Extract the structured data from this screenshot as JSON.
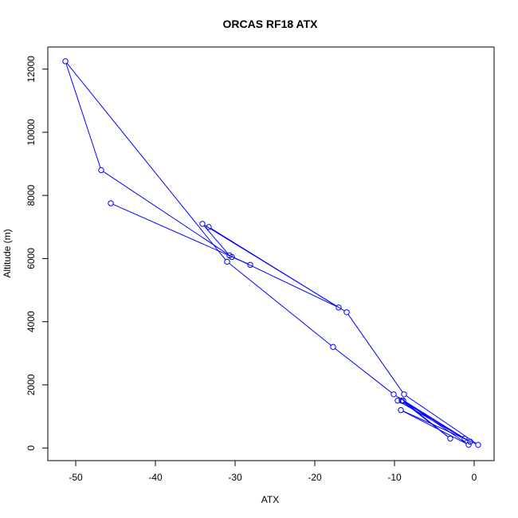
{
  "chart_data": {
    "type": "line",
    "title": "ORCAS RF18 ATX",
    "xlabel": "ATX",
    "ylabel": "Altitude (m)",
    "xlim": [
      -53.5,
      2.5
    ],
    "ylim": [
      -400,
      12700
    ],
    "x_ticks": [
      -50,
      -40,
      -30,
      -20,
      -10,
      0
    ],
    "y_ticks": [
      0,
      2000,
      4000,
      6000,
      8000,
      10000,
      12000
    ],
    "grid": false,
    "line_color": "#0000ff",
    "series": [
      {
        "x": [
          -45.6,
          -28.1,
          -30.4,
          -46.8,
          -51.3,
          -31.0,
          -17.7,
          -10.1,
          -1.2,
          -9.6,
          -0.5,
          -9.1,
          -3.0,
          -8.9,
          -0.7,
          -9.2,
          0.5,
          -8.8,
          -16.0,
          -34.1,
          -30.7,
          -17.0,
          -33.3
        ],
        "y": [
          7750,
          5800,
          6050,
          8800,
          12250,
          5900,
          3200,
          1700,
          300,
          1500,
          200,
          1500,
          300,
          1500,
          100,
          1200,
          100,
          1700,
          4300,
          7100,
          6100,
          4450,
          7000
        ]
      }
    ]
  }
}
